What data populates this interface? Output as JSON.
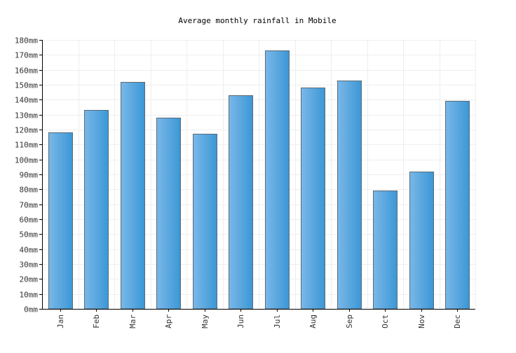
{
  "chart_data": {
    "type": "bar",
    "title": "Average monthly rainfall in Mobile",
    "xlabel": "",
    "ylabel": "",
    "unit": "mm",
    "categories": [
      "Jan",
      "Feb",
      "Mar",
      "Apr",
      "May",
      "Jun",
      "Jul",
      "Aug",
      "Sep",
      "Oct",
      "Nov",
      "Dec"
    ],
    "values": [
      118,
      133,
      152,
      128,
      117,
      143,
      173,
      148,
      153,
      79,
      92,
      139
    ],
    "ylim": [
      0,
      180
    ],
    "ytick_step": 10,
    "grid": true,
    "legend": "none",
    "colors": {
      "bar_light": "#7ab8e8",
      "bar_dark": "#3b97d6",
      "bar_border": "#5a6a78",
      "grid": "#eeeeee",
      "axis": "#000000"
    }
  }
}
